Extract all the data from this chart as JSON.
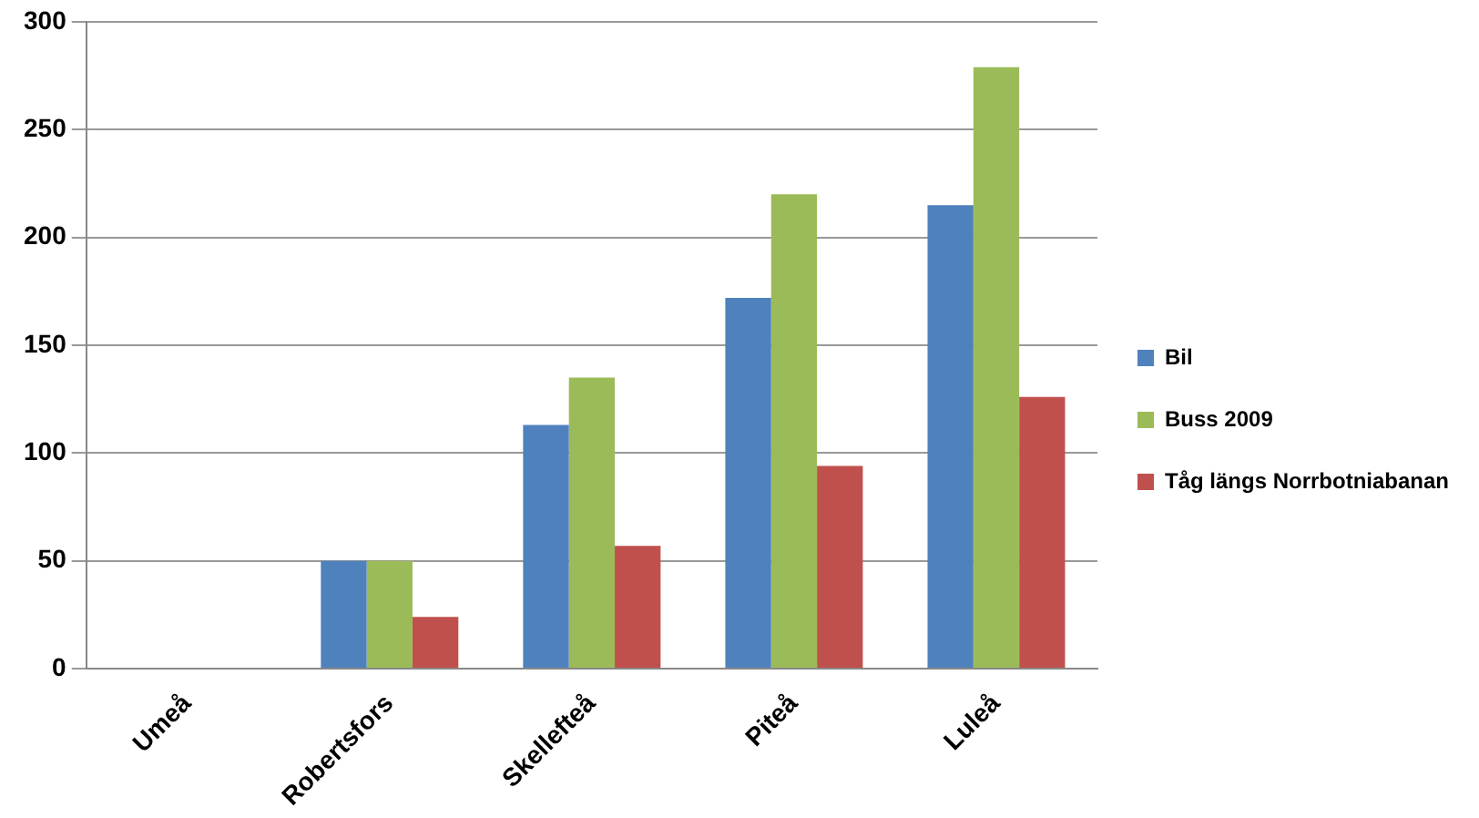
{
  "chart_data": {
    "type": "bar",
    "categories": [
      "Umeå",
      "Robertsfors",
      "Skellefteå",
      "Piteå",
      "Luleå"
    ],
    "series": [
      {
        "name": "Bil",
        "color": "#4f81bd",
        "values": [
          0,
          50,
          113,
          172,
          215
        ]
      },
      {
        "name": "Buss 2009",
        "color": "#9bbb59",
        "values": [
          0,
          50,
          135,
          220,
          279
        ]
      },
      {
        "name": "Tåg längs Norrbotniabanan",
        "color": "#c0504d",
        "values": [
          0,
          24,
          57,
          94,
          126
        ]
      }
    ],
    "ylim": [
      0,
      300
    ],
    "yticks": [
      0,
      50,
      100,
      150,
      200,
      250,
      300
    ],
    "grid": "y",
    "legend": "right"
  }
}
